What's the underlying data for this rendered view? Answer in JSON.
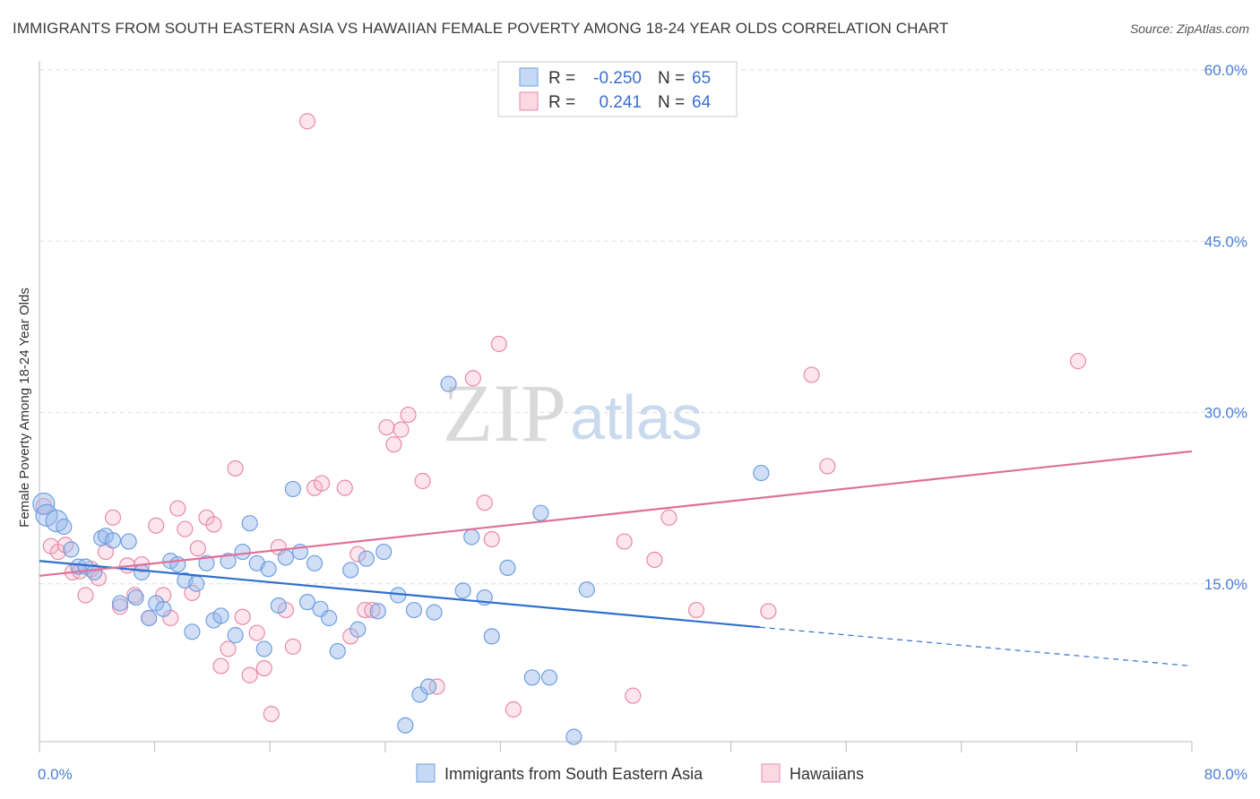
{
  "title": "IMMIGRANTS FROM SOUTH EASTERN ASIA VS HAWAIIAN FEMALE POVERTY AMONG 18-24 YEAR OLDS CORRELATION CHART",
  "source": "Source: ZipAtlas.com",
  "watermark": {
    "zip": "ZIP",
    "atlas": "atlas"
  },
  "colors": {
    "blue": "#6f9fe0",
    "blue_fill": "rgba(150,185,235,0.45)",
    "blue_line": "#2f6fcf",
    "pink": "#e88aa8",
    "pink_fill": "rgba(245,180,200,0.35)",
    "pink_line": "#e0709a",
    "tick_text": "#4a7fd4",
    "grid": "#dddddd"
  },
  "legend": {
    "r_label": "R =",
    "n_label": "N =",
    "blue": {
      "r": "-0.250",
      "n": "65"
    },
    "pink": {
      "r": "0.241",
      "n": "64"
    }
  },
  "chart_data": {
    "type": "scatter",
    "title": "IMMIGRANTS FROM SOUTH EASTERN ASIA VS HAWAIIAN FEMALE POVERTY AMONG 18-24 YEAR OLDS CORRELATION CHART",
    "xlabel": "",
    "ylabel": "Female Poverty Among 18-24 Year Olds",
    "xlim": [
      0,
      80
    ],
    "ylim": [
      0,
      60
    ],
    "x_tick_labels": [
      "0.0%",
      "80.0%"
    ],
    "y_ticks": [
      15,
      30,
      45,
      60
    ],
    "y_tick_labels": [
      "15.0%",
      "30.0%",
      "45.0%",
      "60.0%"
    ],
    "grid": true,
    "legend_position": "top-center",
    "series": [
      {
        "name": "Immigrants from South Eastern Asia",
        "color": "#6f9fe0",
        "trend": {
          "x0": 0,
          "y0": 17.0,
          "x1": 50,
          "y1": 11.2,
          "dashed_to_x": 80,
          "dashed_to_y": 7.8
        },
        "points": [
          [
            0.3,
            22.0
          ],
          [
            0.5,
            21.0
          ],
          [
            1.2,
            20.5
          ],
          [
            1.7,
            20.0
          ],
          [
            2.2,
            18.0
          ],
          [
            2.7,
            16.5
          ],
          [
            3.2,
            16.5
          ],
          [
            3.8,
            16.0
          ],
          [
            4.3,
            19.0
          ],
          [
            4.6,
            19.2
          ],
          [
            5.1,
            18.8
          ],
          [
            5.6,
            13.3
          ],
          [
            6.2,
            18.7
          ],
          [
            6.7,
            13.8
          ],
          [
            7.1,
            16.0
          ],
          [
            7.6,
            12.0
          ],
          [
            8.1,
            13.3
          ],
          [
            8.6,
            12.8
          ],
          [
            9.1,
            17.0
          ],
          [
            9.6,
            16.7
          ],
          [
            10.1,
            15.3
          ],
          [
            10.6,
            10.8
          ],
          [
            10.9,
            15.0
          ],
          [
            11.6,
            16.8
          ],
          [
            12.1,
            11.8
          ],
          [
            12.6,
            12.2
          ],
          [
            13.1,
            17.0
          ],
          [
            13.6,
            10.5
          ],
          [
            14.1,
            17.8
          ],
          [
            14.6,
            20.3
          ],
          [
            15.1,
            16.8
          ],
          [
            15.6,
            9.3
          ],
          [
            15.9,
            16.3
          ],
          [
            16.6,
            13.1
          ],
          [
            17.1,
            17.3
          ],
          [
            17.6,
            23.3
          ],
          [
            18.1,
            17.8
          ],
          [
            18.6,
            13.4
          ],
          [
            19.1,
            16.8
          ],
          [
            19.5,
            12.8
          ],
          [
            20.1,
            12.0
          ],
          [
            20.7,
            9.1
          ],
          [
            21.6,
            16.2
          ],
          [
            22.1,
            11.0
          ],
          [
            22.7,
            17.2
          ],
          [
            23.5,
            12.6
          ],
          [
            23.9,
            17.8
          ],
          [
            24.9,
            14.0
          ],
          [
            25.4,
            2.6
          ],
          [
            26.0,
            12.7
          ],
          [
            26.4,
            5.3
          ],
          [
            27.0,
            6.0
          ],
          [
            27.4,
            12.5
          ],
          [
            28.4,
            32.5
          ],
          [
            29.4,
            14.4
          ],
          [
            30.0,
            19.1
          ],
          [
            30.9,
            13.8
          ],
          [
            31.4,
            10.4
          ],
          [
            32.5,
            16.4
          ],
          [
            34.2,
            6.8
          ],
          [
            34.8,
            21.2
          ],
          [
            35.4,
            6.8
          ],
          [
            37.1,
            1.6
          ],
          [
            50.1,
            24.7
          ],
          [
            38.0,
            14.5
          ]
        ]
      },
      {
        "name": "Hawaiians",
        "color": "#e88aa8",
        "trend": {
          "x0": 0,
          "y0": 15.7,
          "x1": 80,
          "y1": 26.6
        },
        "points": [
          [
            0.3,
            21.8
          ],
          [
            0.8,
            18.3
          ],
          [
            1.3,
            17.8
          ],
          [
            1.8,
            18.4
          ],
          [
            2.3,
            16.0
          ],
          [
            2.8,
            16.1
          ],
          [
            3.2,
            14.0
          ],
          [
            3.6,
            16.3
          ],
          [
            4.1,
            15.5
          ],
          [
            4.6,
            17.8
          ],
          [
            5.1,
            20.8
          ],
          [
            5.6,
            13.0
          ],
          [
            6.1,
            16.6
          ],
          [
            6.6,
            14.0
          ],
          [
            7.1,
            16.7
          ],
          [
            7.6,
            12.0
          ],
          [
            8.1,
            20.1
          ],
          [
            8.6,
            14.0
          ],
          [
            9.1,
            12.0
          ],
          [
            9.6,
            21.6
          ],
          [
            10.1,
            19.8
          ],
          [
            10.6,
            14.2
          ],
          [
            11.0,
            18.1
          ],
          [
            11.6,
            20.8
          ],
          [
            12.1,
            20.2
          ],
          [
            12.6,
            7.8
          ],
          [
            13.1,
            9.3
          ],
          [
            13.6,
            25.1
          ],
          [
            14.1,
            12.1
          ],
          [
            14.6,
            7.0
          ],
          [
            15.1,
            10.7
          ],
          [
            15.6,
            7.6
          ],
          [
            16.1,
            3.6
          ],
          [
            16.6,
            18.2
          ],
          [
            17.1,
            12.7
          ],
          [
            17.6,
            9.5
          ],
          [
            18.6,
            55.5
          ],
          [
            19.1,
            23.4
          ],
          [
            19.6,
            23.8
          ],
          [
            21.2,
            23.4
          ],
          [
            21.6,
            10.4
          ],
          [
            22.1,
            17.6
          ],
          [
            22.6,
            12.7
          ],
          [
            23.1,
            12.7
          ],
          [
            24.1,
            28.7
          ],
          [
            24.6,
            27.2
          ],
          [
            25.1,
            28.5
          ],
          [
            25.6,
            29.8
          ],
          [
            26.6,
            24.0
          ],
          [
            27.6,
            6.0
          ],
          [
            30.1,
            33.0
          ],
          [
            30.9,
            22.1
          ],
          [
            31.4,
            18.9
          ],
          [
            31.9,
            36.0
          ],
          [
            32.9,
            4.0
          ],
          [
            40.6,
            18.7
          ],
          [
            41.2,
            5.2
          ],
          [
            42.7,
            17.1
          ],
          [
            43.7,
            20.8
          ],
          [
            45.6,
            12.7
          ],
          [
            50.6,
            12.6
          ],
          [
            53.6,
            33.3
          ],
          [
            54.7,
            25.3
          ],
          [
            72.1,
            34.5
          ]
        ]
      }
    ]
  },
  "bottom_legend": {
    "blue_label": "Immigrants from South Eastern Asia",
    "pink_label": "Hawaiians"
  }
}
